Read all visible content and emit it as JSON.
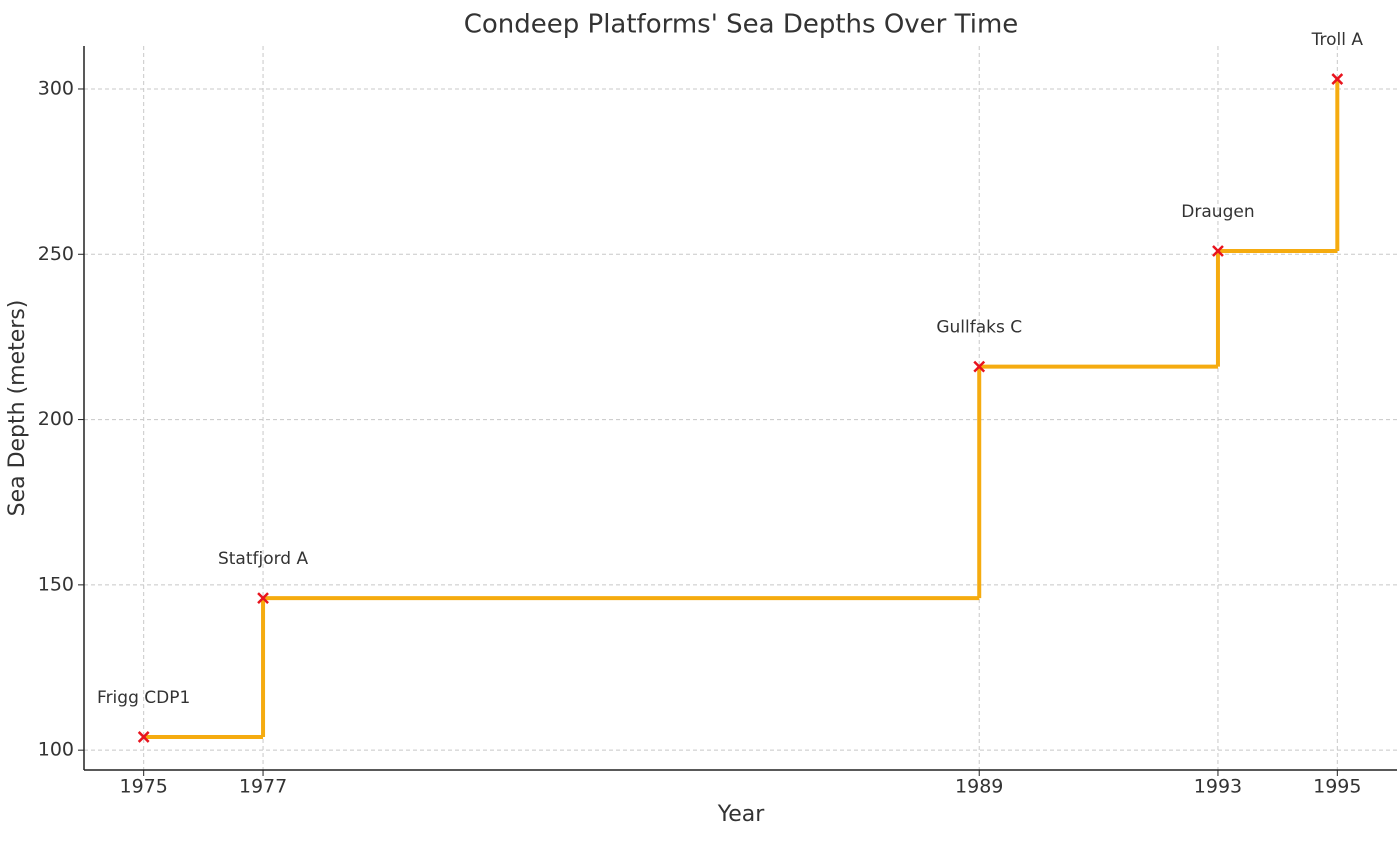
{
  "chart_data": {
    "type": "line",
    "drawstyle": "steps-post",
    "title": "Condeep Platforms' Sea Depths Over Time",
    "x_label": "Year",
    "y_label": "Sea Depth (meters)",
    "x": [
      1975,
      1977,
      1989,
      1993,
      1995
    ],
    "values": [
      104,
      146,
      216,
      251,
      303
    ],
    "labels": [
      "Frigg CDP1",
      "Statfjord A",
      "Gullfaks C",
      "Draugen",
      "Troll A"
    ],
    "color": "#f5ab0f",
    "marker_color": "#e8141e",
    "xlim": [
      1974,
      1996
    ],
    "xticks": [
      1975,
      1977,
      1989,
      1993,
      1995
    ],
    "ylim": [
      94,
      313
    ],
    "yticks": [
      100,
      150,
      200,
      250,
      300
    ],
    "grid": true
  }
}
